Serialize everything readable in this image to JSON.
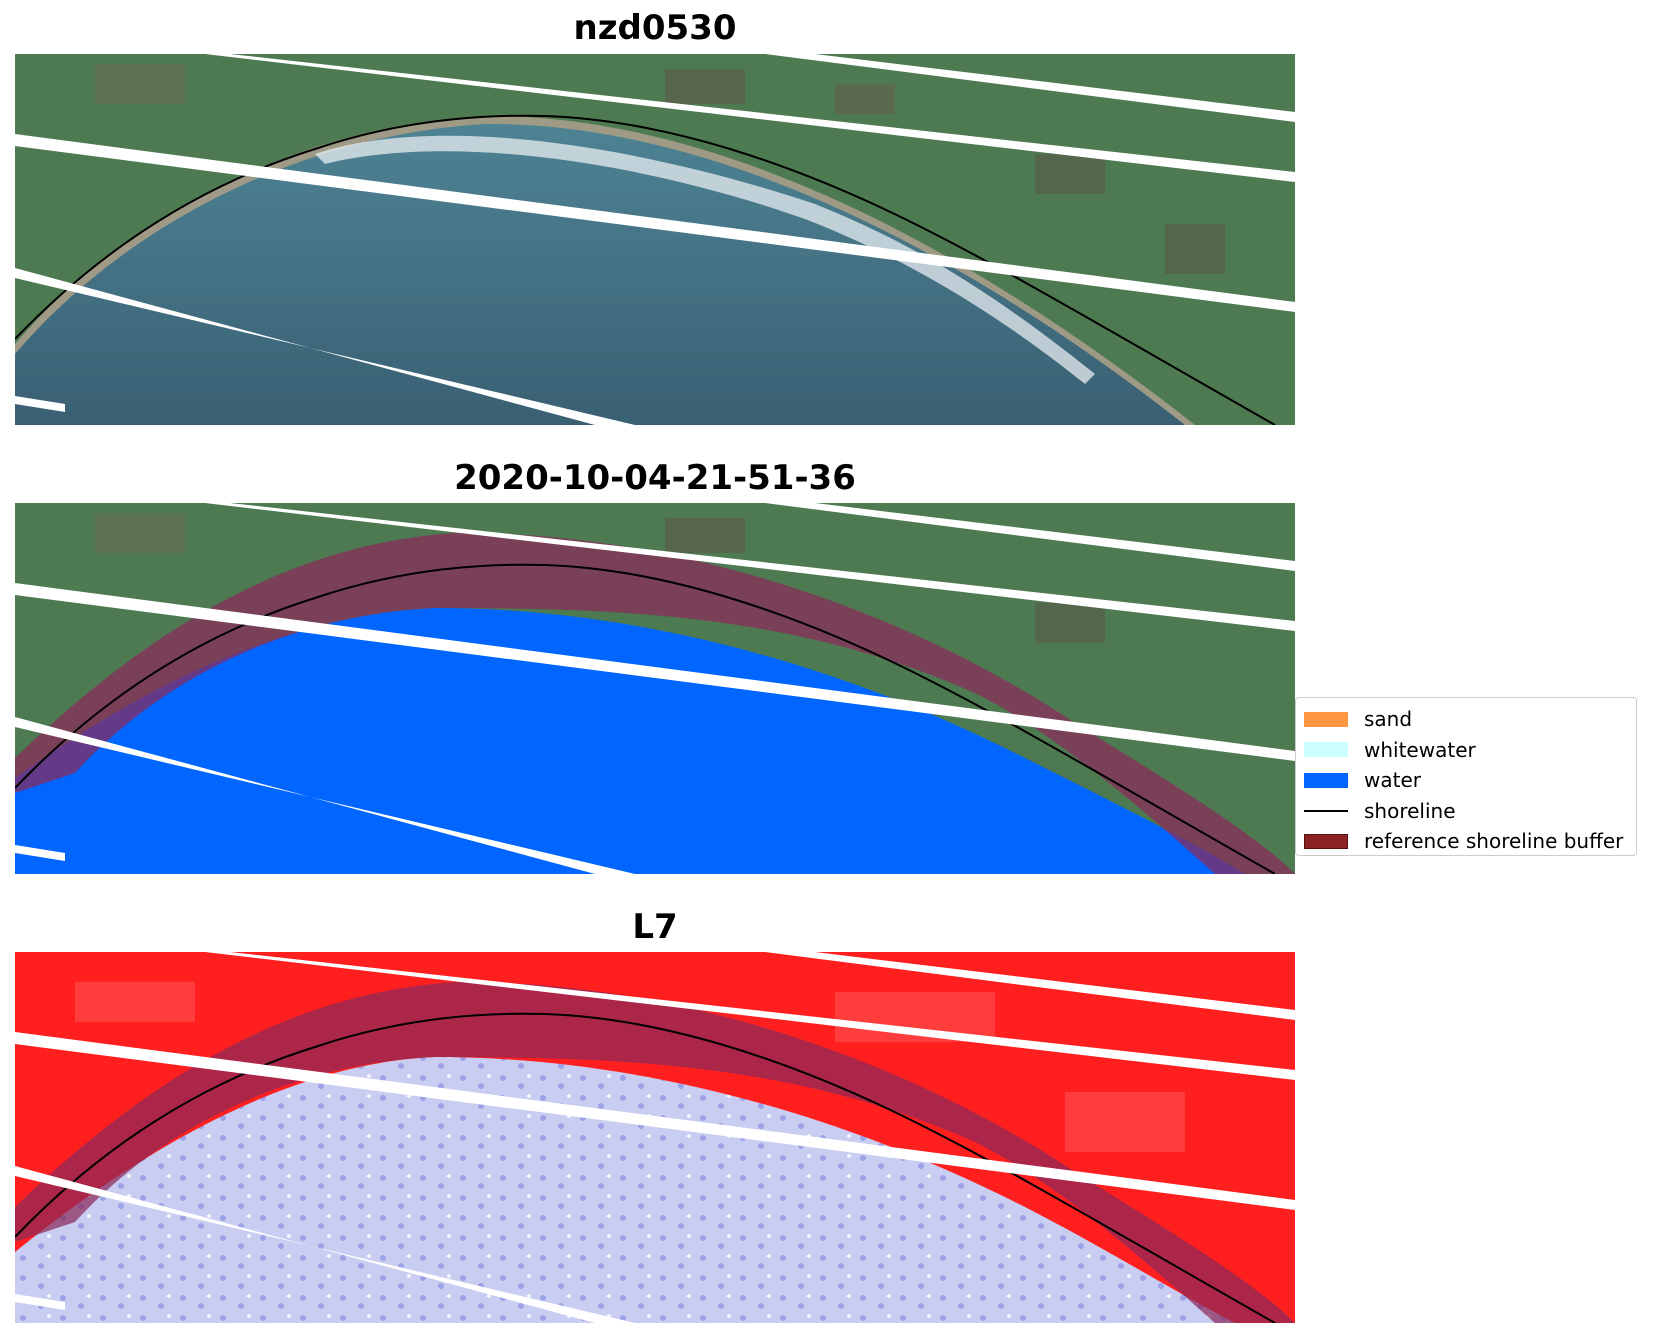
{
  "figure": {
    "panels": [
      {
        "title": "nzd0530"
      },
      {
        "title": "2020-10-04-21-51-36"
      },
      {
        "title": "L7"
      }
    ]
  },
  "legend": {
    "items": [
      {
        "label": "sand",
        "color": "#ff9640"
      },
      {
        "label": "whitewater",
        "color": "#ccffff"
      },
      {
        "label": "water",
        "color": "#0066ff"
      },
      {
        "label": "shoreline",
        "color": "#000000"
      },
      {
        "label": "reference shoreline buffer",
        "color": "#8b2323"
      }
    ]
  },
  "colors": {
    "land": "#4e7a52",
    "sea": "#3d6f84",
    "water_class": "#0066ff",
    "buffer": "#8b2a5a",
    "index_land": "#ff1a1a",
    "index_water": "#c8ccf2"
  }
}
